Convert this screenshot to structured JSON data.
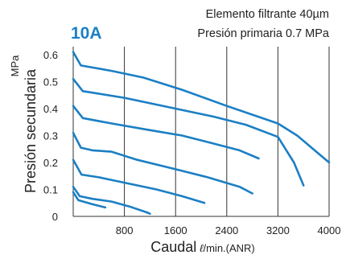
{
  "chart_data": {
    "type": "line",
    "title": "10A",
    "annotations": [
      "Elemento filtrante 40µm",
      "Presión primaria 0.7 MPa"
    ],
    "ylabel": "Presión secundaria",
    "yunit": "MPa",
    "xlabel": "Caudal",
    "xunit_symbol": "ℓ",
    "xunit": "/min.(ANR)",
    "xlim": [
      0,
      4000
    ],
    "ylim": [
      0,
      0.63
    ],
    "xticks": [
      800,
      1600,
      2400,
      3200,
      4000
    ],
    "yticks": [
      0,
      0.1,
      0.2,
      0.3,
      0.4,
      0.5,
      0.6
    ],
    "xtick_labels": [
      "800",
      "1600",
      "2400",
      "3200",
      "4000"
    ],
    "ytick_labels": [
      "0",
      "0.1",
      "0.2",
      "0.3",
      "0.4",
      "0.5",
      "0.6"
    ],
    "grid": true,
    "color": "#1b7fc4",
    "series": [
      {
        "points": [
          [
            0,
            0.61
          ],
          [
            120,
            0.56
          ],
          [
            600,
            0.54
          ],
          [
            1100,
            0.515
          ],
          [
            1700,
            0.47
          ],
          [
            2400,
            0.41
          ],
          [
            3200,
            0.345
          ],
          [
            3500,
            0.3
          ],
          [
            3800,
            0.24
          ],
          [
            4000,
            0.2
          ]
        ]
      },
      {
        "points": [
          [
            0,
            0.51
          ],
          [
            150,
            0.465
          ],
          [
            800,
            0.44
          ],
          [
            1500,
            0.405
          ],
          [
            2200,
            0.37
          ],
          [
            2700,
            0.34
          ],
          [
            3200,
            0.295
          ],
          [
            3450,
            0.2
          ],
          [
            3600,
            0.115
          ]
        ]
      },
      {
        "points": [
          [
            0,
            0.41
          ],
          [
            150,
            0.365
          ],
          [
            600,
            0.345
          ],
          [
            1200,
            0.32
          ],
          [
            1700,
            0.3
          ],
          [
            2200,
            0.27
          ],
          [
            2600,
            0.245
          ],
          [
            2900,
            0.215
          ]
        ]
      },
      {
        "points": [
          [
            0,
            0.31
          ],
          [
            120,
            0.255
          ],
          [
            300,
            0.245
          ],
          [
            600,
            0.24
          ],
          [
            1000,
            0.21
          ],
          [
            1600,
            0.175
          ],
          [
            2100,
            0.145
          ],
          [
            2600,
            0.11
          ],
          [
            2800,
            0.085
          ]
        ]
      },
      {
        "points": [
          [
            0,
            0.21
          ],
          [
            130,
            0.155
          ],
          [
            400,
            0.145
          ],
          [
            800,
            0.125
          ],
          [
            1300,
            0.1
          ],
          [
            1700,
            0.075
          ],
          [
            2050,
            0.05
          ]
        ]
      },
      {
        "points": [
          [
            0,
            0.11
          ],
          [
            100,
            0.075
          ],
          [
            300,
            0.065
          ],
          [
            600,
            0.055
          ],
          [
            900,
            0.035
          ],
          [
            1150,
            0.015
          ],
          [
            1200,
            0.01
          ]
        ]
      },
      {
        "points": [
          [
            0,
            0.09
          ],
          [
            80,
            0.06
          ],
          [
            300,
            0.045
          ],
          [
            500,
            0.033
          ]
        ]
      }
    ]
  }
}
